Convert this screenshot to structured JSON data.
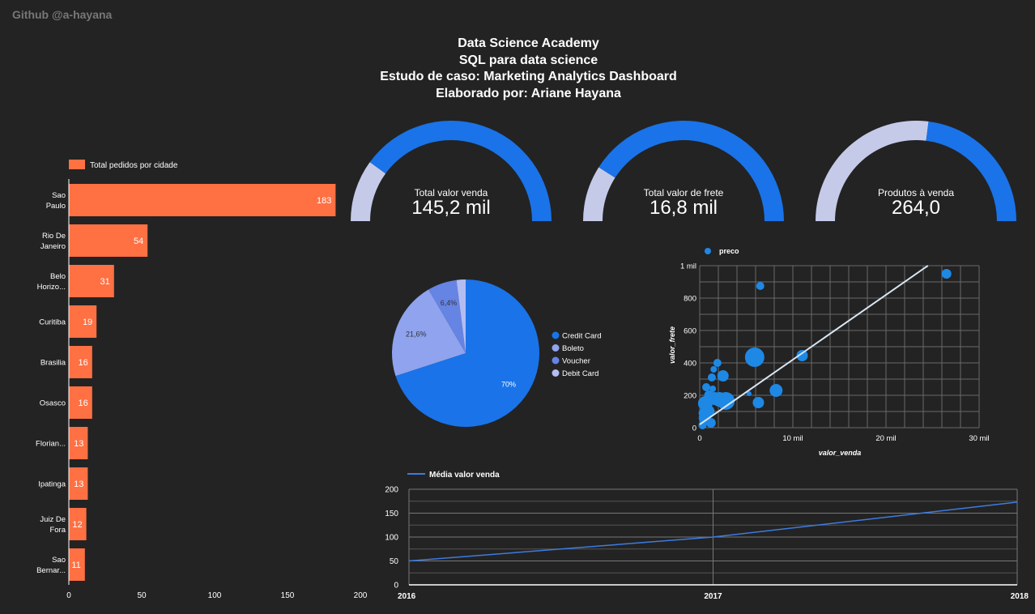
{
  "watermark": "Github @a-hayana",
  "header": {
    "line1": "Data Science Academy",
    "line2": "SQL para data science",
    "line3": "Estudo de caso: Marketing Analytics Dashboard",
    "line4": "Elaborado por: Ariane Hayana"
  },
  "colors": {
    "background": "#232323",
    "bar": "#ff7043",
    "gauge_fill": "#1a73e8",
    "gauge_track": "#c5cae9",
    "pie": [
      "#1a73e8",
      "#8fa3ee",
      "#6584e4",
      "#b3bdf2"
    ],
    "scatter": "#1e88e5",
    "trend": "#d8e6f3",
    "line": "#3d7be0"
  },
  "gauges": [
    {
      "label": "Total valor venda",
      "value": "145,2 mil",
      "fraction": 0.8
    },
    {
      "label": "Total valor de frete",
      "value": "16,8 mil",
      "fraction": 0.82
    },
    {
      "label": "Produtos à venda",
      "value": "264,0",
      "fraction": 0.46
    }
  ],
  "chart_data": [
    {
      "type": "bar",
      "orientation": "horizontal",
      "legend": "Total pedidos por cidade",
      "categories": [
        [
          "Sao",
          "Paulo"
        ],
        [
          "Rio De",
          "Janeiro"
        ],
        [
          "Belo",
          "Horizo..."
        ],
        [
          "Curitiba"
        ],
        [
          "Brasilia"
        ],
        [
          "Osasco"
        ],
        [
          "Florian..."
        ],
        [
          "Ipatinga"
        ],
        [
          "Juiz De",
          "Fora"
        ],
        [
          "Sao",
          "Bernar..."
        ]
      ],
      "values": [
        183,
        54,
        31,
        19,
        16,
        16,
        13,
        13,
        12,
        11
      ],
      "xlim": [
        0,
        200
      ],
      "xticks": [
        0,
        50,
        100,
        150,
        200
      ]
    },
    {
      "type": "pie",
      "labels": [
        "Credit Card",
        "Boleto",
        "Voucher",
        "Debit Card"
      ],
      "values": [
        70,
        21.6,
        6.4,
        2.0
      ],
      "slice_labels": [
        "70%",
        "21,6%",
        "6,4%",
        ""
      ]
    },
    {
      "type": "scatter",
      "legend": "preco",
      "xlabel": "valor_venda",
      "ylabel": "valor_frete",
      "xlim": [
        0,
        30000
      ],
      "ylim": [
        0,
        1000
      ],
      "xtick_labels": [
        "0",
        "10 mil",
        "20 mil",
        "30 mil"
      ],
      "ytick_labels": [
        "0",
        "200",
        "400",
        "600",
        "800",
        "1 mil"
      ],
      "trendline": {
        "x0": 0,
        "y0": 20,
        "x1": 24500,
        "y1": 1000
      },
      "points": [
        {
          "x": 26500,
          "y": 950,
          "size": 6
        },
        {
          "x": 6500,
          "y": 875,
          "size": 5
        },
        {
          "x": 5900,
          "y": 435,
          "size": 12
        },
        {
          "x": 11000,
          "y": 445,
          "size": 7
        },
        {
          "x": 8200,
          "y": 230,
          "size": 8
        },
        {
          "x": 6300,
          "y": 155,
          "size": 7
        },
        {
          "x": 2800,
          "y": 165,
          "size": 11
        },
        {
          "x": 2500,
          "y": 320,
          "size": 7
        },
        {
          "x": 1900,
          "y": 400,
          "size": 5
        },
        {
          "x": 1500,
          "y": 360,
          "size": 4
        },
        {
          "x": 1300,
          "y": 310,
          "size": 5
        },
        {
          "x": 1400,
          "y": 240,
          "size": 4
        },
        {
          "x": 1000,
          "y": 200,
          "size": 6
        },
        {
          "x": 600,
          "y": 150,
          "size": 9
        },
        {
          "x": 900,
          "y": 100,
          "size": 8
        },
        {
          "x": 500,
          "y": 60,
          "size": 7
        },
        {
          "x": 1200,
          "y": 30,
          "size": 6
        },
        {
          "x": 300,
          "y": 15,
          "size": 5
        },
        {
          "x": 1600,
          "y": 180,
          "size": 8
        },
        {
          "x": 2100,
          "y": 175,
          "size": 9
        },
        {
          "x": 5300,
          "y": 210,
          "size": 3
        },
        {
          "x": 700,
          "y": 250,
          "size": 5
        },
        {
          "x": 400,
          "y": 90,
          "size": 6
        }
      ]
    },
    {
      "type": "line",
      "legend": "Média valor venda",
      "x": [
        "2016",
        "2017",
        "2018"
      ],
      "values": [
        50,
        100,
        173
      ],
      "ylim": [
        0,
        200
      ],
      "yticks": [
        0,
        50,
        100,
        150,
        200
      ]
    }
  ]
}
